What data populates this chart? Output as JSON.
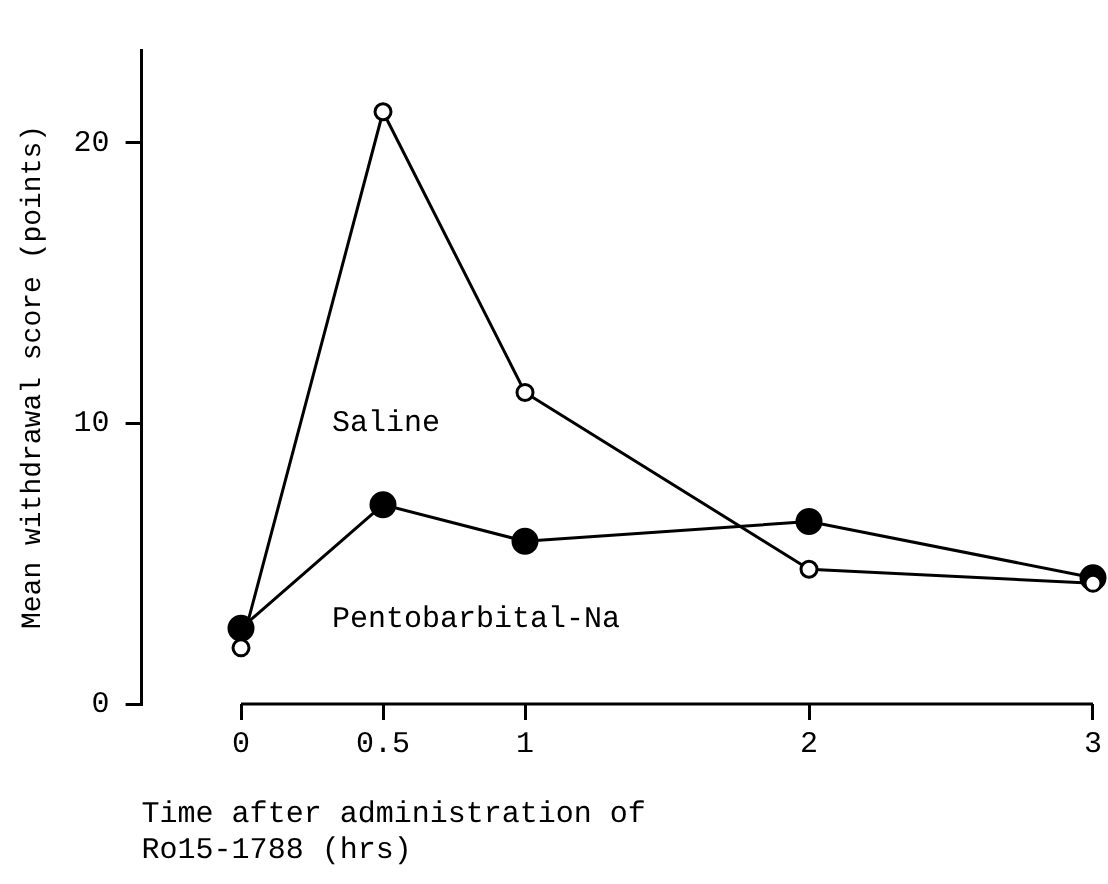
{
  "chart_data": {
    "type": "line",
    "xlabel": "Time after administration of\nRo15-1788 (hrs)",
    "ylabel": "Mean withdrawal score (points)",
    "x": [
      0,
      0.5,
      1,
      2,
      3
    ],
    "series": [
      {
        "name": "Saline",
        "color": "#000000",
        "values": [
          2.0,
          21.1,
          11.1,
          4.8,
          4.3
        ]
      },
      {
        "name": "Pentobarbital-Na",
        "color": "#000000",
        "values": [
          2.7,
          7.1,
          5.8,
          6.5,
          4.5
        ]
      }
    ],
    "xlim": [
      -0.35,
      3
    ],
    "xticks": [
      0,
      0.5,
      1,
      2,
      3
    ],
    "ylim": [
      0,
      23.3
    ],
    "yticks": [
      0,
      10,
      20
    ],
    "grid": false,
    "legend": false,
    "marker": "circle",
    "line_style": "solid"
  }
}
